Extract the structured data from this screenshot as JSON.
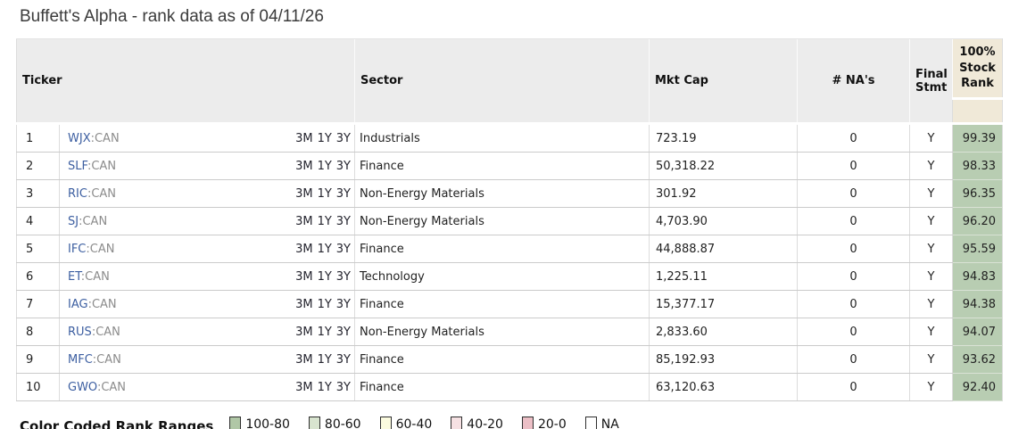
{
  "title": "Buffett's Alpha - rank data as of 04/11/26",
  "table": {
    "headers": {
      "ticker": "Ticker",
      "sector": "Sector",
      "mkt_cap": "Mkt Cap",
      "nas": "# NA's",
      "final_stmt": "Final Stmt",
      "stock_rank": "100% Stock Rank"
    },
    "period_links": [
      "3M",
      "1Y",
      "3Y"
    ],
    "rows": [
      {
        "rank": "1",
        "ticker": "WJX",
        "suffix": ":CAN",
        "sector": "Industrials",
        "mkt_cap": "723.19",
        "nas": "0",
        "final_stmt": "Y",
        "stock_rank": "99.39"
      },
      {
        "rank": "2",
        "ticker": "SLF",
        "suffix": ":CAN",
        "sector": "Finance",
        "mkt_cap": "50,318.22",
        "nas": "0",
        "final_stmt": "Y",
        "stock_rank": "98.33"
      },
      {
        "rank": "3",
        "ticker": "RIC",
        "suffix": ":CAN",
        "sector": "Non-Energy Materials",
        "mkt_cap": "301.92",
        "nas": "0",
        "final_stmt": "Y",
        "stock_rank": "96.35"
      },
      {
        "rank": "4",
        "ticker": "SJ",
        "suffix": ":CAN",
        "sector": "Non-Energy Materials",
        "mkt_cap": "4,703.90",
        "nas": "0",
        "final_stmt": "Y",
        "stock_rank": "96.20"
      },
      {
        "rank": "5",
        "ticker": "IFC",
        "suffix": ":CAN",
        "sector": "Finance",
        "mkt_cap": "44,888.87",
        "nas": "0",
        "final_stmt": "Y",
        "stock_rank": "95.59"
      },
      {
        "rank": "6",
        "ticker": "ET",
        "suffix": ":CAN",
        "sector": "Technology",
        "mkt_cap": "1,225.11",
        "nas": "0",
        "final_stmt": "Y",
        "stock_rank": "94.83"
      },
      {
        "rank": "7",
        "ticker": "IAG",
        "suffix": ":CAN",
        "sector": "Finance",
        "mkt_cap": "15,377.17",
        "nas": "0",
        "final_stmt": "Y",
        "stock_rank": "94.38"
      },
      {
        "rank": "8",
        "ticker": "RUS",
        "suffix": ":CAN",
        "sector": "Non-Energy Materials",
        "mkt_cap": "2,833.60",
        "nas": "0",
        "final_stmt": "Y",
        "stock_rank": "94.07"
      },
      {
        "rank": "9",
        "ticker": "MFC",
        "suffix": ":CAN",
        "sector": "Finance",
        "mkt_cap": "85,192.93",
        "nas": "0",
        "final_stmt": "Y",
        "stock_rank": "93.62"
      },
      {
        "rank": "10",
        "ticker": "GWO",
        "suffix": ":CAN",
        "sector": "Finance",
        "mkt_cap": "63,120.63",
        "nas": "0",
        "final_stmt": "Y",
        "stock_rank": "92.40"
      }
    ]
  },
  "legend": {
    "label": "Color Coded Rank Ranges",
    "items": [
      {
        "label": "100-80",
        "color": "#b0c7a6"
      },
      {
        "label": "80-60",
        "color": "#d8e4cf"
      },
      {
        "label": "60-40",
        "color": "#fbfbdf"
      },
      {
        "label": "40-20",
        "color": "#f6e1e3"
      },
      {
        "label": "20-0",
        "color": "#ecbfc6"
      },
      {
        "label": "NA",
        "color": "#ffffff"
      }
    ]
  },
  "colors": {
    "header_bg": "#ececec",
    "rank_header_bg": "#f0e9d8",
    "rank_cell_bg": "#b8cdb2",
    "link_blue": "#3d5fa1",
    "suffix_gray": "#8c8c8c"
  }
}
